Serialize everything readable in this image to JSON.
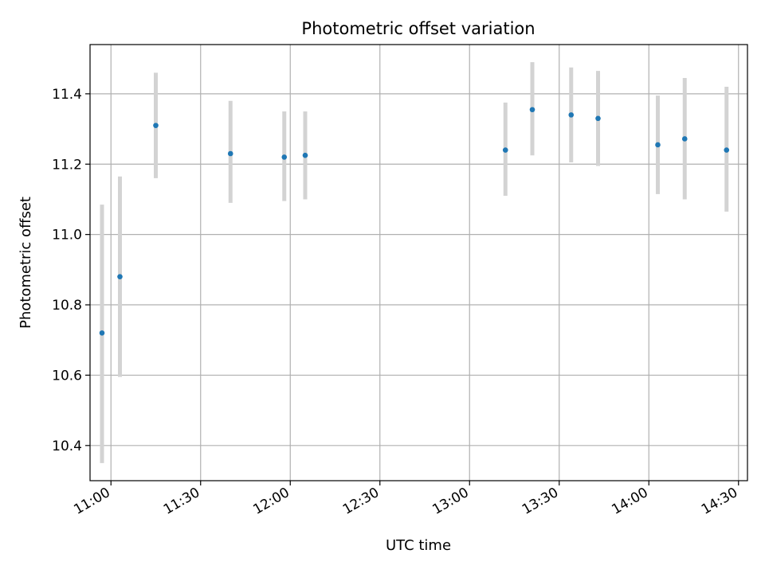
{
  "chart_data": {
    "type": "scatter",
    "title": "Photometric offset variation",
    "xlabel": "UTC time",
    "ylabel": "Photometric offset",
    "x_format": "HH:MM",
    "xlim": [
      "10:53",
      "14:33"
    ],
    "ylim": [
      10.3,
      11.54
    ],
    "x_ticks": [
      "11:00",
      "11:30",
      "12:00",
      "12:30",
      "13:00",
      "13:30",
      "14:00",
      "14:30"
    ],
    "y_ticks": [
      10.4,
      10.6,
      10.8,
      11.0,
      11.2,
      11.4
    ],
    "y_tick_labels": [
      "10.4",
      "10.6",
      "10.8",
      "11.0",
      "11.2",
      "11.4"
    ],
    "grid": true,
    "colors": {
      "marker": "#1f77b4",
      "errorbar": "#d3d3d3",
      "grid": "#b0b0b0"
    },
    "series": [
      {
        "points": [
          {
            "x": "10:57",
            "y": 10.72,
            "ylow": 10.35,
            "yhigh": 11.085
          },
          {
            "x": "11:03",
            "y": 10.88,
            "ylow": 10.595,
            "yhigh": 11.165
          },
          {
            "x": "11:15",
            "y": 11.31,
            "ylow": 11.16,
            "yhigh": 11.46
          },
          {
            "x": "11:40",
            "y": 11.23,
            "ylow": 11.09,
            "yhigh": 11.38
          },
          {
            "x": "11:58",
            "y": 11.22,
            "ylow": 11.095,
            "yhigh": 11.35
          },
          {
            "x": "12:05",
            "y": 11.225,
            "ylow": 11.1,
            "yhigh": 11.35
          },
          {
            "x": "13:12",
            "y": 11.24,
            "ylow": 11.11,
            "yhigh": 11.375
          },
          {
            "x": "13:21",
            "y": 11.355,
            "ylow": 11.225,
            "yhigh": 11.49
          },
          {
            "x": "13:34",
            "y": 11.34,
            "ylow": 11.205,
            "yhigh": 11.475
          },
          {
            "x": "13:43",
            "y": 11.33,
            "ylow": 11.195,
            "yhigh": 11.465
          },
          {
            "x": "14:03",
            "y": 11.255,
            "ylow": 11.115,
            "yhigh": 11.395
          },
          {
            "x": "14:12",
            "y": 11.272,
            "ylow": 11.1,
            "yhigh": 11.445
          },
          {
            "x": "14:26",
            "y": 11.24,
            "ylow": 11.065,
            "yhigh": 11.42
          }
        ]
      }
    ]
  }
}
